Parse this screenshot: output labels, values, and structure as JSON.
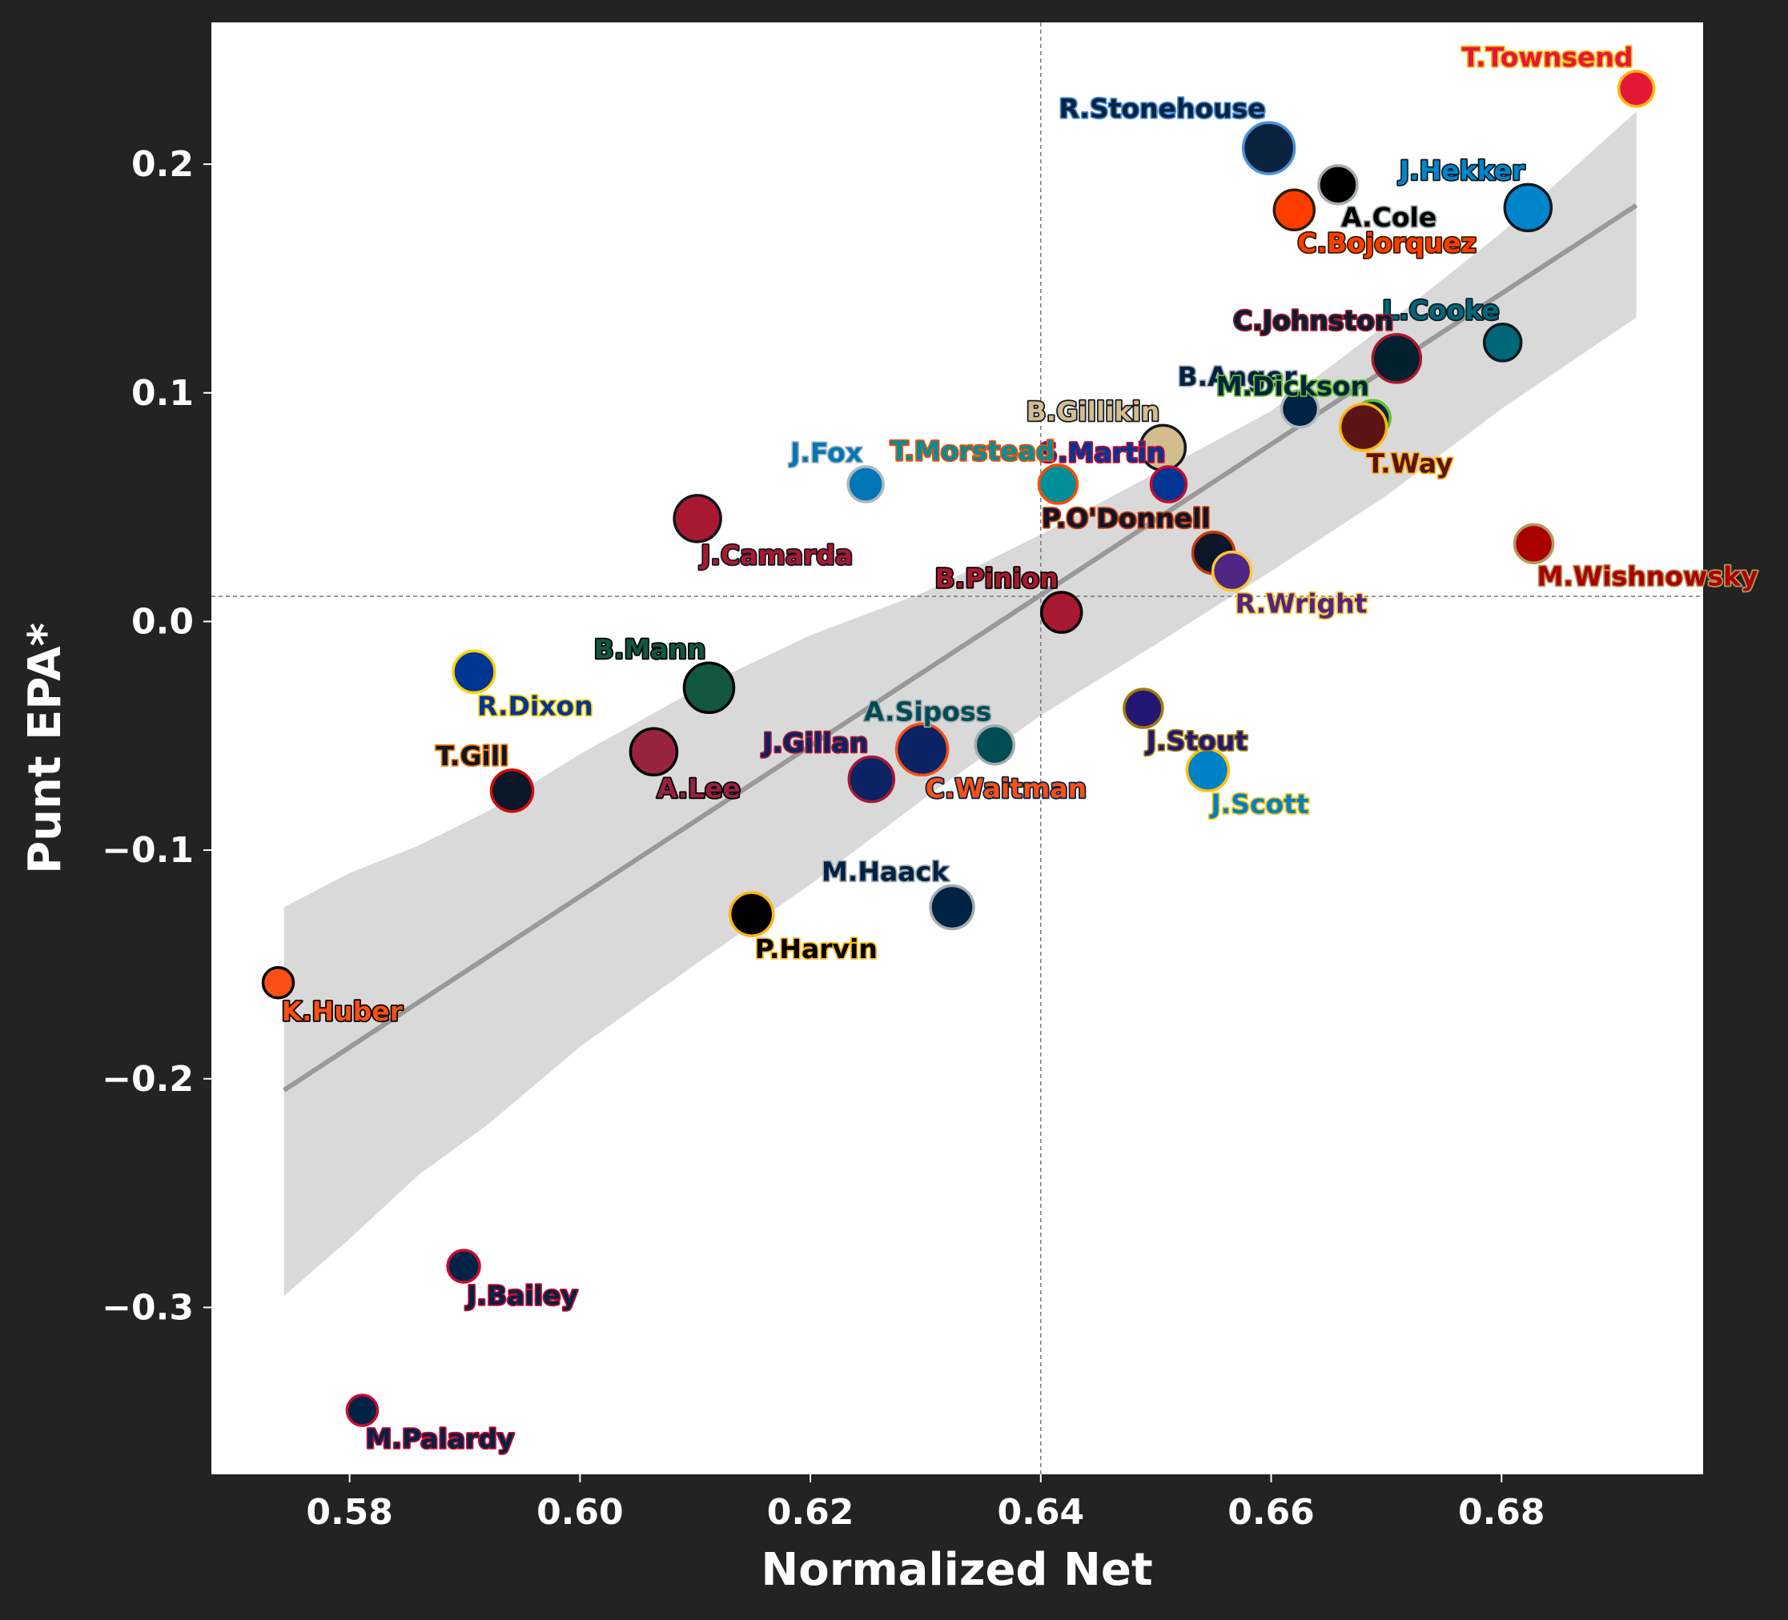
{
  "chart_data": {
    "type": "scatter",
    "xlabel": "Normalized Net",
    "ylabel": "Punt EPA*",
    "xlim": [
      0.568,
      0.6975
    ],
    "ylim": [
      -0.373,
      0.262
    ],
    "xticks": [
      0.58,
      0.6,
      0.62,
      0.64,
      0.66,
      0.68
    ],
    "xtick_labels": [
      "0.58",
      "0.60",
      "0.62",
      "0.64",
      "0.66",
      "0.68"
    ],
    "yticks": [
      -0.3,
      -0.2,
      -0.1,
      0.0,
      0.1,
      0.2
    ],
    "ytick_labels": [
      "−0.3",
      "−0.2",
      "−0.1",
      "0.0",
      "0.1",
      "0.2"
    ],
    "mean_lines": {
      "x": 0.64,
      "y": 0.011
    },
    "regression": {
      "x": [
        0.5743,
        0.6917
      ],
      "y": [
        -0.205,
        0.182
      ],
      "band": {
        "x": [
          0.5743,
          0.58,
          0.586,
          0.592,
          0.6,
          0.61,
          0.62,
          0.63,
          0.64,
          0.65,
          0.66,
          0.67,
          0.68,
          0.6917
        ],
        "upper": [
          -0.125,
          -0.11,
          -0.098,
          -0.083,
          -0.058,
          -0.03,
          -0.006,
          0.013,
          0.038,
          0.065,
          0.092,
          0.13,
          0.17,
          0.223
        ],
        "lower": [
          -0.295,
          -0.27,
          -0.242,
          -0.22,
          -0.186,
          -0.15,
          -0.115,
          -0.077,
          -0.041,
          -0.01,
          0.022,
          0.055,
          0.093,
          0.133
        ]
      },
      "color": "#999999"
    },
    "points": [
      {
        "name": "T.Townsend",
        "x": 0.6917,
        "y": 0.233,
        "fill": "#E31837",
        "edge": "#FFB612",
        "size": 22,
        "label_color": "#E31837",
        "label_outline": "#FFB612",
        "label_pos": "above-left"
      },
      {
        "name": "R.Stonehouse",
        "x": 0.6598,
        "y": 0.207,
        "fill": "#0C2340",
        "edge": "#4B92DB",
        "size": 32,
        "label_color": "#0C2340",
        "label_outline": "#4B92DB",
        "label_pos": "above-left"
      },
      {
        "name": "A.Cole",
        "x": 0.6658,
        "y": 0.191,
        "fill": "#000000",
        "edge": "#A5ACAF",
        "size": 24,
        "label_color": "#000000",
        "label_outline": "#A5ACAF",
        "label_pos": "below-right"
      },
      {
        "name": "C.Bojorquez",
        "x": 0.662,
        "y": 0.18,
        "fill": "#FF3C00",
        "edge": "#311D00",
        "size": 25,
        "label_color": "#FF3C00",
        "label_outline": "#311D00",
        "label_pos": "below-right"
      },
      {
        "name": "J.Hekker",
        "x": 0.6823,
        "y": 0.181,
        "fill": "#0085CA",
        "edge": "#101820",
        "size": 29,
        "label_color": "#0085CA",
        "label_outline": "#101820",
        "label_pos": "above-left"
      },
      {
        "name": "L.Cooke",
        "x": 0.6801,
        "y": 0.122,
        "fill": "#006778",
        "edge": "#101820",
        "size": 23,
        "label_color": "#006778",
        "label_outline": "#101820",
        "label_pos": "above-left"
      },
      {
        "name": "C.Johnston",
        "x": 0.6709,
        "y": 0.115,
        "fill": "#03202F",
        "edge": "#A71930",
        "size": 30,
        "label_color": "#03202F",
        "label_outline": "#A71930",
        "label_pos": "above-left"
      },
      {
        "name": "B.Anger",
        "x": 0.6625,
        "y": 0.093,
        "fill": "#002244",
        "edge": "#B0B7BC",
        "size": 23,
        "label_color": "#002244",
        "label_outline": "#B0B7BC",
        "label_pos": "above-left"
      },
      {
        "name": "M.Dickson",
        "x": 0.6688,
        "y": 0.089,
        "fill": "#002244",
        "edge": "#69BE28",
        "size": 22,
        "label_color": "#002244",
        "label_outline": "#69BE28",
        "label_pos": "above-left"
      },
      {
        "name": "T.Way",
        "x": 0.668,
        "y": 0.085,
        "fill": "#5A1414",
        "edge": "#FFB612",
        "size": 29,
        "label_color": "#5A1414",
        "label_outline": "#FFB612",
        "label_pos": "below-right"
      },
      {
        "name": "B.Gillikin",
        "x": 0.6506,
        "y": 0.076,
        "fill": "#D3BC8D",
        "edge": "#101820",
        "size": 28,
        "label_color": "#D3BC8D",
        "label_outline": "#101820",
        "label_pos": "above-left"
      },
      {
        "name": "S.Martin",
        "x": 0.6511,
        "y": 0.06,
        "fill": "#003594",
        "edge": "#C60C30",
        "size": 22,
        "label_color": "#003594",
        "label_outline": "#C60C30",
        "label_pos": "above-left"
      },
      {
        "name": "T.Morstead",
        "x": 0.6415,
        "y": 0.06,
        "fill": "#008E97",
        "edge": "#FC4C02",
        "size": 24,
        "label_color": "#008E97",
        "label_outline": "#FC4C02",
        "label_pos": "above-left"
      },
      {
        "name": "J.Fox",
        "x": 0.6248,
        "y": 0.06,
        "fill": "#0076B6",
        "edge": "#B0B7BC",
        "size": 22,
        "label_color": "#0076B6",
        "label_outline": "#B0B7BC",
        "label_pos": "above-left"
      },
      {
        "name": "J.Camarda",
        "x": 0.6102,
        "y": 0.045,
        "fill": "#A71930",
        "edge": "#101820",
        "size": 29,
        "label_color": "#A71930",
        "label_outline": "#101820",
        "label_pos": "below-right"
      },
      {
        "name": "M.Wishnowsky",
        "x": 0.6828,
        "y": 0.034,
        "fill": "#AA0000",
        "edge": "#B3995D",
        "size": 24,
        "label_color": "#AA0000",
        "label_outline": "#B3995D",
        "label_pos": "below-right"
      },
      {
        "name": "P.O'Donnell",
        "x": 0.655,
        "y": 0.03,
        "fill": "#0B162A",
        "edge": "#C83803",
        "size": 26,
        "label_color": "#0B162A",
        "label_outline": "#C83803",
        "label_pos": "above-left"
      },
      {
        "name": "R.Wright",
        "x": 0.6566,
        "y": 0.022,
        "fill": "#4F2683",
        "edge": "#FFC62F",
        "size": 24,
        "label_color": "#4F2683",
        "label_outline": "#FFC62F",
        "label_pos": "below-right"
      },
      {
        "name": "B.Pinion",
        "x": 0.6418,
        "y": 0.004,
        "fill": "#A71930",
        "edge": "#000000",
        "size": 25,
        "label_color": "#A71930",
        "label_outline": "#000000",
        "label_pos": "above-left"
      },
      {
        "name": "R.Dixon",
        "x": 0.5908,
        "y": -0.022,
        "fill": "#003594",
        "edge": "#FFD100",
        "size": 26,
        "label_color": "#003594",
        "label_outline": "#FFD100",
        "label_pos": "below-right"
      },
      {
        "name": "B.Mann",
        "x": 0.6112,
        "y": -0.029,
        "fill": "#125740",
        "edge": "#000000",
        "size": 31,
        "label_color": "#125740",
        "label_outline": "#000000",
        "label_pos": "above-left"
      },
      {
        "name": "J.Stout",
        "x": 0.6489,
        "y": -0.038,
        "fill": "#241773",
        "edge": "#9E7C0C",
        "size": 24,
        "label_color": "#241773",
        "label_outline": "#9E7C0C",
        "label_pos": "below-right"
      },
      {
        "name": "A.Siposs",
        "x": 0.636,
        "y": -0.054,
        "fill": "#004C54",
        "edge": "#A5ACAF",
        "size": 24,
        "label_color": "#004C54",
        "label_outline": "#A5ACAF",
        "label_pos": "above-left"
      },
      {
        "name": "C.Waitman",
        "x": 0.6297,
        "y": -0.056,
        "fill": "#0B2265",
        "edge": "#FB4F14",
        "size": 32,
        "label_color": "#FB4F14",
        "label_outline": "#002244",
        "label_pos": "below-right"
      },
      {
        "name": "A.Lee",
        "x": 0.6064,
        "y": -0.057,
        "fill": "#97233F",
        "edge": "#000000",
        "size": 29,
        "label_color": "#97233F",
        "label_outline": "#000000",
        "label_pos": "below-right"
      },
      {
        "name": "J.Gillan",
        "x": 0.6253,
        "y": -0.069,
        "fill": "#0B2265",
        "edge": "#A71930",
        "size": 28,
        "label_color": "#0B2265",
        "label_outline": "#A71930",
        "label_pos": "above-left"
      },
      {
        "name": "J.Scott",
        "x": 0.6545,
        "y": -0.065,
        "fill": "#0080C6",
        "edge": "#FFC20E",
        "size": 26,
        "label_color": "#0080C6",
        "label_outline": "#FFC20E",
        "label_pos": "below-right"
      },
      {
        "name": "T.Gill",
        "x": 0.5941,
        "y": -0.074,
        "fill": "#0A162A",
        "edge": "#D50A0A",
        "size": 26,
        "label_color": "#0A162A",
        "label_outline": "#FF7900",
        "label_pos": "above-left"
      },
      {
        "name": "M.Haack",
        "x": 0.6323,
        "y": -0.125,
        "fill": "#002244",
        "edge": "#A5ACAF",
        "size": 27,
        "label_color": "#002244",
        "label_outline": "#A5ACAF",
        "label_pos": "above-left"
      },
      {
        "name": "P.Harvin",
        "x": 0.6149,
        "y": -0.128,
        "fill": "#000000",
        "edge": "#FFB612",
        "size": 27,
        "label_color": "#000000",
        "label_outline": "#FFB612",
        "label_pos": "below-right"
      },
      {
        "name": "K.Huber",
        "x": 0.5738,
        "y": -0.158,
        "fill": "#FB4F14",
        "edge": "#000000",
        "size": 19,
        "label_color": "#FB4F14",
        "label_outline": "#000000",
        "label_pos": "below-right"
      },
      {
        "name": "J.Bailey",
        "x": 0.5899,
        "y": -0.282,
        "fill": "#002244",
        "edge": "#C60C30",
        "size": 20,
        "label_color": "#002244",
        "label_outline": "#C60C30",
        "label_pos": "below-right"
      },
      {
        "name": "M.Palardy",
        "x": 0.5811,
        "y": -0.345,
        "fill": "#002244",
        "edge": "#C60C30",
        "size": 19,
        "label_color": "#002244",
        "label_outline": "#C60C30",
        "label_pos": "below-right"
      }
    ]
  }
}
